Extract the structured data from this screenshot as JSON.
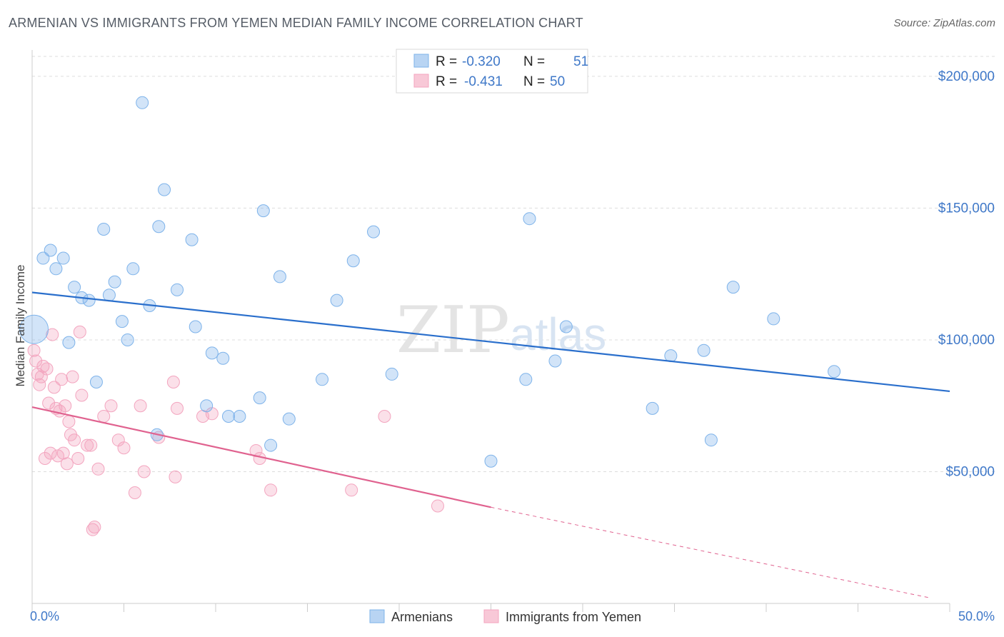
{
  "title": "ARMENIAN VS IMMIGRANTS FROM YEMEN MEDIAN FAMILY INCOME CORRELATION CHART",
  "source": "Source: ZipAtlas.com",
  "watermark": {
    "zip": "ZIP",
    "atlas": "atlas"
  },
  "colors": {
    "armenians": "#7eb3ea",
    "armenians_line": "#2a6fcc",
    "yemen": "#f3a5bf",
    "yemen_line": "#e0628f",
    "tick_label": "#3f78c8"
  },
  "legend_top": {
    "rows": [
      {
        "r_label": "R =",
        "r_value": "-0.320",
        "n_label": "N =",
        "n_value": "51"
      },
      {
        "r_label": "R =",
        "r_value": "-0.431",
        "n_label": "N =",
        "n_value": "50"
      }
    ]
  },
  "chart_data": {
    "type": "scatter",
    "title": "ARMENIAN VS IMMIGRANTS FROM YEMEN MEDIAN FAMILY INCOME CORRELATION CHART",
    "xlabel": "",
    "ylabel": "Median Family Income",
    "xlim": [
      0,
      50
    ],
    "ylim": [
      0,
      210000
    ],
    "x_tick_labels": [
      "0.0%",
      "50.0%"
    ],
    "y_ticks": [
      50000,
      100000,
      150000,
      200000
    ],
    "y_tick_labels": [
      "$50,000",
      "$100,000",
      "$150,000",
      "$200,000"
    ],
    "grid": "horizontal dashed",
    "legend_position": "bottom-center",
    "series": [
      {
        "name": "Armenians",
        "trend": {
          "x": [
            0,
            50
          ],
          "y": [
            118000,
            80500
          ]
        },
        "points": [
          [
            0.1,
            104000
          ],
          [
            0.6,
            131000
          ],
          [
            1.0,
            134000
          ],
          [
            1.3,
            127000
          ],
          [
            1.7,
            131000
          ],
          [
            2.0,
            99000
          ],
          [
            2.3,
            120000
          ],
          [
            2.7,
            116000
          ],
          [
            3.1,
            115000
          ],
          [
            3.5,
            84000
          ],
          [
            3.9,
            142000
          ],
          [
            4.2,
            117000
          ],
          [
            4.5,
            122000
          ],
          [
            4.9,
            107000
          ],
          [
            5.2,
            100000
          ],
          [
            5.5,
            127000
          ],
          [
            6.0,
            190000
          ],
          [
            6.4,
            113000
          ],
          [
            6.9,
            143000
          ],
          [
            7.2,
            157000
          ],
          [
            7.9,
            119000
          ],
          [
            8.7,
            138000
          ],
          [
            8.9,
            105000
          ],
          [
            9.5,
            75000
          ],
          [
            9.8,
            95000
          ],
          [
            10.4,
            93000
          ],
          [
            10.7,
            71000
          ],
          [
            11.3,
            71000
          ],
          [
            12.4,
            78000
          ],
          [
            12.6,
            149000
          ],
          [
            13.0,
            60000
          ],
          [
            13.5,
            124000
          ],
          [
            14.0,
            70000
          ],
          [
            15.8,
            85000
          ],
          [
            16.6,
            115000
          ],
          [
            17.5,
            130000
          ],
          [
            18.6,
            141000
          ],
          [
            19.6,
            87000
          ],
          [
            25.0,
            54000
          ],
          [
            26.9,
            85000
          ],
          [
            27.1,
            146000
          ],
          [
            28.5,
            92000
          ],
          [
            29.1,
            105000
          ],
          [
            33.8,
            74000
          ],
          [
            34.8,
            94000
          ],
          [
            36.6,
            96000
          ],
          [
            37.0,
            62000
          ],
          [
            38.2,
            120000
          ],
          [
            40.4,
            108000
          ],
          [
            43.7,
            88000
          ],
          [
            6.8,
            64000
          ]
        ]
      },
      {
        "name": "Immigrants from Yemen",
        "trend": {
          "x": [
            0,
            25
          ],
          "y": [
            74500,
            36500
          ]
        },
        "trend_dashed": {
          "x": [
            25,
            49
          ],
          "y": [
            36500,
            2000
          ]
        },
        "points": [
          [
            0.1,
            96000
          ],
          [
            0.3,
            87000
          ],
          [
            0.4,
            83000
          ],
          [
            0.5,
            86000
          ],
          [
            0.6,
            90000
          ],
          [
            0.7,
            55000
          ],
          [
            0.8,
            89000
          ],
          [
            0.9,
            76000
          ],
          [
            1.0,
            57000
          ],
          [
            1.1,
            102000
          ],
          [
            1.2,
            82000
          ],
          [
            1.3,
            74000
          ],
          [
            1.4,
            56000
          ],
          [
            1.5,
            73000
          ],
          [
            1.6,
            85000
          ],
          [
            1.7,
            57000
          ],
          [
            1.8,
            75000
          ],
          [
            1.9,
            53000
          ],
          [
            2.0,
            69000
          ],
          [
            2.1,
            64000
          ],
          [
            2.2,
            86000
          ],
          [
            2.3,
            62000
          ],
          [
            2.5,
            55000
          ],
          [
            2.6,
            103000
          ],
          [
            2.7,
            79000
          ],
          [
            3.0,
            60000
          ],
          [
            3.2,
            60000
          ],
          [
            3.3,
            28000
          ],
          [
            3.4,
            29000
          ],
          [
            3.6,
            51000
          ],
          [
            3.9,
            71000
          ],
          [
            4.3,
            75000
          ],
          [
            4.7,
            62000
          ],
          [
            5.0,
            59000
          ],
          [
            5.6,
            42000
          ],
          [
            5.9,
            75000
          ],
          [
            6.1,
            50000
          ],
          [
            6.9,
            63000
          ],
          [
            7.7,
            84000
          ],
          [
            7.8,
            48000
          ],
          [
            7.9,
            74000
          ],
          [
            9.3,
            71000
          ],
          [
            9.8,
            72000
          ],
          [
            12.2,
            58000
          ],
          [
            12.4,
            55000
          ],
          [
            13.0,
            43000
          ],
          [
            17.4,
            43000
          ],
          [
            19.2,
            71000
          ],
          [
            22.1,
            37000
          ],
          [
            0.2,
            92000
          ]
        ]
      }
    ]
  }
}
